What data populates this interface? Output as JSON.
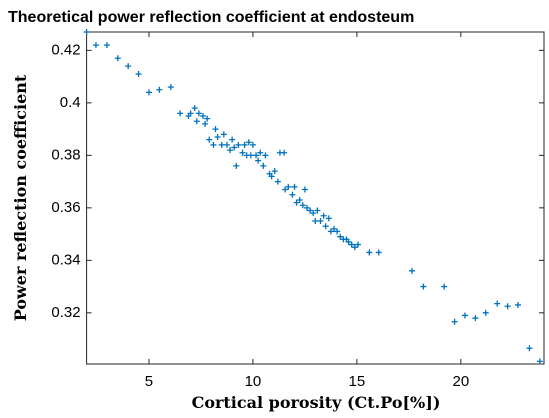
{
  "chart_data": {
    "type": "scatter",
    "title": "Theoretical power reflection coefficient at endosteum",
    "x_label": "Cortical porosity (Ct.Po[%])",
    "y_label": "Power reflection coefficient",
    "color": "#0072bd",
    "xlim": [
      2,
      24
    ],
    "xticks": [
      5,
      10,
      15,
      20
    ],
    "ylim": [
      0.3005,
      0.427
    ],
    "yticks": [
      0.32,
      0.34,
      0.36,
      0.38,
      0.4,
      0.42
    ],
    "x": [
      2.0,
      2.45,
      2.98,
      3.5,
      4.0,
      4.5,
      5.0,
      5.5,
      6.05,
      6.5,
      6.9,
      7.0,
      7.2,
      7.3,
      7.4,
      7.6,
      7.7,
      7.8,
      7.9,
      8.1,
      8.2,
      8.3,
      8.5,
      8.6,
      8.75,
      8.9,
      9.0,
      9.1,
      9.2,
      9.3,
      9.5,
      9.6,
      9.7,
      9.8,
      9.9,
      10.0,
      10.15,
      10.25,
      10.35,
      10.5,
      10.6,
      10.8,
      10.9,
      11.05,
      11.2,
      11.3,
      11.5,
      11.55,
      11.7,
      11.9,
      12.0,
      12.1,
      12.25,
      12.4,
      12.5,
      12.6,
      12.75,
      12.9,
      13.0,
      13.1,
      13.25,
      13.4,
      13.5,
      13.65,
      13.75,
      13.9,
      14.05,
      14.2,
      14.35,
      14.5,
      14.6,
      14.75,
      14.9,
      15.05,
      15.6,
      16.05,
      17.65,
      18.2,
      19.2,
      19.7,
      20.2,
      20.7,
      21.2,
      21.75,
      22.25,
      22.75,
      23.3,
      23.8
    ],
    "y": [
      0.427,
      0.422,
      0.422,
      0.417,
      0.414,
      0.411,
      0.404,
      0.405,
      0.406,
      0.396,
      0.395,
      0.396,
      0.398,
      0.393,
      0.396,
      0.395,
      0.392,
      0.394,
      0.386,
      0.384,
      0.39,
      0.387,
      0.384,
      0.388,
      0.384,
      0.382,
      0.386,
      0.383,
      0.376,
      0.384,
      0.381,
      0.384,
      0.38,
      0.385,
      0.38,
      0.384,
      0.38,
      0.378,
      0.381,
      0.376,
      0.38,
      0.373,
      0.372,
      0.374,
      0.37,
      0.381,
      0.381,
      0.367,
      0.368,
      0.365,
      0.368,
      0.362,
      0.363,
      0.361,
      0.367,
      0.36,
      0.359,
      0.358,
      0.355,
      0.359,
      0.355,
      0.357,
      0.353,
      0.356,
      0.351,
      0.352,
      0.351,
      0.349,
      0.348,
      0.348,
      0.347,
      0.346,
      0.345,
      0.346,
      0.343,
      0.343,
      0.336,
      0.33,
      0.33,
      0.3166,
      0.319,
      0.318,
      0.32,
      0.3235,
      0.3225,
      0.323,
      0.3065,
      0.3015
    ]
  }
}
